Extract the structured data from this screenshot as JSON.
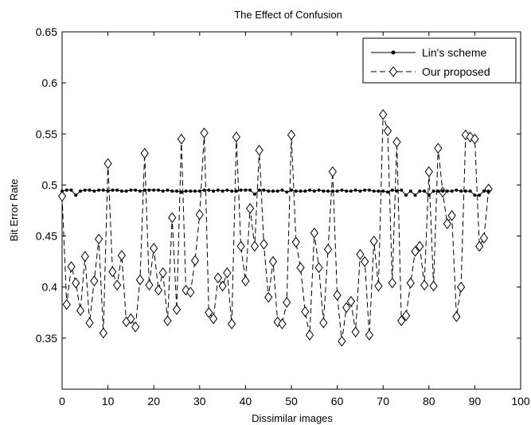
{
  "chart_data": {
    "type": "line",
    "title": "The Effect of Confusion",
    "xlabel": "Dissimilar images",
    "ylabel": "Bit Error Rate",
    "xlim": [
      0,
      100
    ],
    "ylim": [
      0.3,
      0.65
    ],
    "xticks": [
      0,
      10,
      20,
      30,
      40,
      50,
      60,
      70,
      80,
      90,
      100
    ],
    "xtick_labels": [
      "0",
      "10",
      "20",
      "30",
      "40",
      "50",
      "60",
      "70",
      "80",
      "90",
      "100"
    ],
    "yticks": [
      0.35,
      0.4,
      0.45,
      0.5,
      0.55,
      0.6,
      0.65
    ],
    "ytick_labels": [
      "0.35",
      "0.4",
      "0.45",
      "0.5",
      "0.55",
      "0.6",
      "0.65"
    ],
    "grid": false,
    "legend": {
      "placement": "top-right"
    },
    "series": [
      {
        "name": "Lin's scheme",
        "color": "#000000",
        "line_style": "solid",
        "marker": "dot",
        "x": [
          0,
          1,
          2,
          3,
          4,
          5,
          6,
          7,
          8,
          9,
          10,
          11,
          12,
          13,
          14,
          15,
          16,
          17,
          18,
          19,
          20,
          21,
          22,
          23,
          24,
          25,
          26,
          27,
          28,
          29,
          30,
          31,
          32,
          33,
          34,
          35,
          36,
          37,
          38,
          39,
          40,
          41,
          42,
          43,
          44,
          45,
          46,
          47,
          48,
          49,
          50,
          51,
          52,
          53,
          54,
          55,
          56,
          57,
          58,
          59,
          60,
          61,
          62,
          63,
          64,
          65,
          66,
          67,
          68,
          69,
          70,
          71,
          72,
          73,
          74,
          75,
          76,
          77,
          78,
          79,
          80,
          81,
          82,
          83,
          84,
          85,
          86,
          87,
          88,
          89,
          90,
          91,
          92,
          93
        ],
        "y": [
          0.494,
          0.495,
          0.495,
          0.49,
          0.494,
          0.495,
          0.495,
          0.494,
          0.495,
          0.495,
          0.494,
          0.495,
          0.495,
          0.494,
          0.494,
          0.495,
          0.495,
          0.494,
          0.495,
          0.495,
          0.495,
          0.495,
          0.494,
          0.495,
          0.494,
          0.494,
          0.493,
          0.494,
          0.494,
          0.494,
          0.494,
          0.495,
          0.495,
          0.494,
          0.495,
          0.494,
          0.495,
          0.494,
          0.494,
          0.495,
          0.495,
          0.495,
          0.491,
          0.495,
          0.495,
          0.494,
          0.494,
          0.494,
          0.495,
          0.493,
          0.495,
          0.494,
          0.494,
          0.494,
          0.495,
          0.494,
          0.495,
          0.494,
          0.494,
          0.494,
          0.494,
          0.495,
          0.494,
          0.494,
          0.495,
          0.494,
          0.495,
          0.495,
          0.494,
          0.494,
          0.494,
          0.493,
          0.495,
          0.494,
          0.495,
          0.49,
          0.494,
          0.49,
          0.494,
          0.494,
          0.49,
          0.494,
          0.494,
          0.494,
          0.494,
          0.494,
          0.495,
          0.494,
          0.494,
          0.494,
          0.49,
          0.49,
          0.494,
          0.494
        ]
      },
      {
        "name": "Our proposed",
        "color": "#000000",
        "line_style": "dashed",
        "marker": "diamond",
        "x": [
          0,
          1,
          2,
          3,
          4,
          5,
          6,
          7,
          8,
          9,
          10,
          11,
          12,
          13,
          14,
          15,
          16,
          17,
          18,
          19,
          20,
          21,
          22,
          23,
          24,
          25,
          26,
          27,
          28,
          29,
          30,
          31,
          32,
          33,
          34,
          35,
          36,
          37,
          38,
          39,
          40,
          41,
          42,
          43,
          44,
          45,
          46,
          47,
          48,
          49,
          50,
          51,
          52,
          53,
          54,
          55,
          56,
          57,
          58,
          59,
          60,
          61,
          62,
          63,
          64,
          65,
          66,
          67,
          68,
          69,
          70,
          71,
          72,
          73,
          74,
          75,
          76,
          77,
          78,
          79,
          80,
          81,
          82,
          83,
          84,
          85,
          86,
          87,
          88,
          89,
          90,
          91,
          92,
          93
        ],
        "y": [
          0.489,
          0.383,
          0.42,
          0.404,
          0.377,
          0.43,
          0.365,
          0.406,
          0.447,
          0.355,
          0.521,
          0.415,
          0.402,
          0.431,
          0.366,
          0.369,
          0.361,
          0.407,
          0.531,
          0.402,
          0.438,
          0.397,
          0.414,
          0.367,
          0.468,
          0.378,
          0.545,
          0.397,
          0.395,
          0.426,
          0.471,
          0.551,
          0.375,
          0.369,
          0.409,
          0.401,
          0.414,
          0.364,
          0.547,
          0.44,
          0.406,
          0.477,
          0.44,
          0.534,
          0.442,
          0.39,
          0.425,
          0.366,
          0.364,
          0.385,
          0.549,
          0.444,
          0.419,
          0.376,
          0.353,
          0.453,
          0.419,
          0.365,
          0.437,
          0.513,
          0.392,
          0.347,
          0.38,
          0.386,
          0.356,
          0.432,
          0.425,
          0.353,
          0.445,
          0.401,
          0.569,
          0.553,
          0.404,
          0.542,
          0.367,
          0.372,
          0.404,
          0.435,
          0.44,
          0.402,
          0.513,
          0.401,
          0.536,
          0.493,
          0.462,
          0.47,
          0.371,
          0.4,
          0.549,
          0.547,
          0.545,
          0.44,
          0.448,
          0.496
        ]
      }
    ]
  }
}
